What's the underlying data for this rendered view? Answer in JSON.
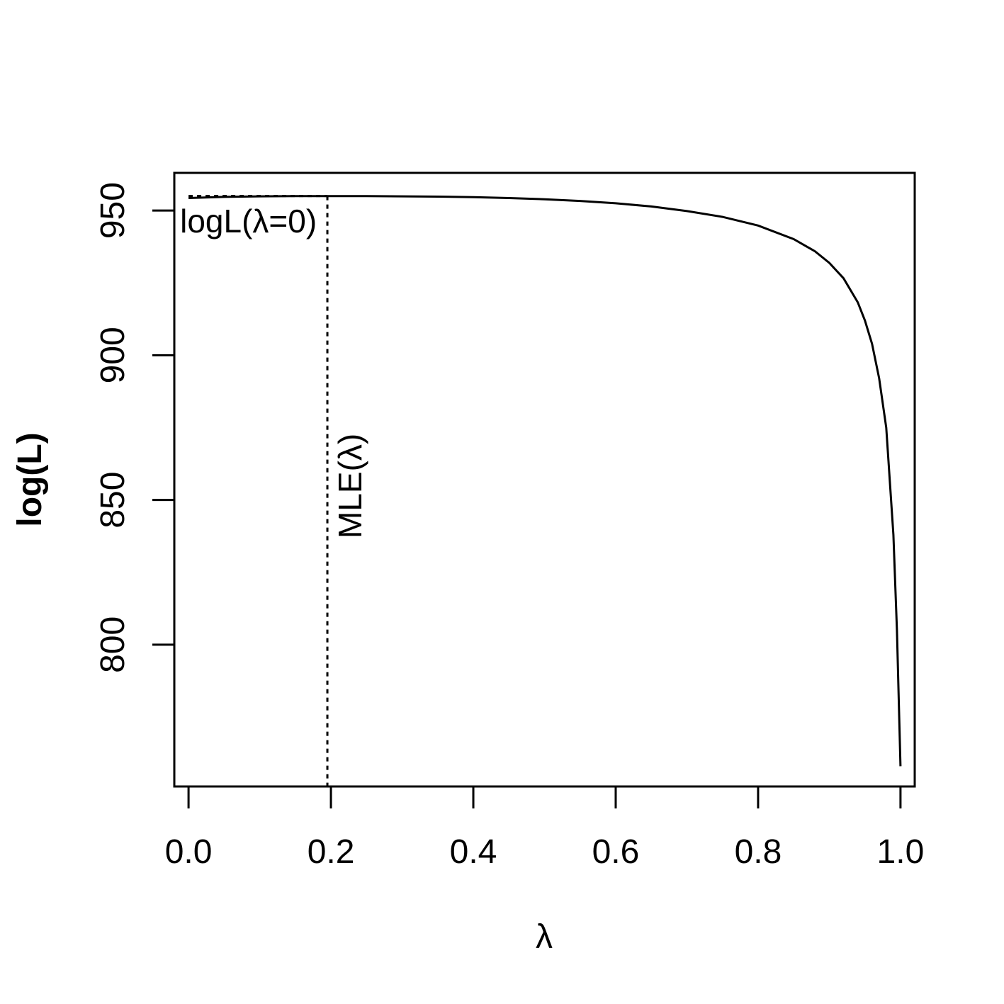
{
  "chart_data": {
    "type": "line",
    "xlabel": "λ",
    "ylabel": "log(L)",
    "xlim": [
      -0.02,
      1.02
    ],
    "ylim": [
      751,
      963
    ],
    "x_ticks": [
      0.0,
      0.2,
      0.4,
      0.6,
      0.8,
      1.0
    ],
    "x_tick_labels": [
      "0.0",
      "0.2",
      "0.4",
      "0.6",
      "0.8",
      "1.0"
    ],
    "y_ticks": [
      800,
      850,
      900,
      950
    ],
    "y_tick_labels": [
      "800",
      "850",
      "900",
      "950"
    ],
    "grid": false,
    "legend": "none",
    "series": [
      {
        "x": [
          0.0,
          0.05,
          0.1,
          0.15,
          0.2,
          0.25,
          0.3,
          0.35,
          0.4,
          0.45,
          0.5,
          0.55,
          0.6,
          0.65,
          0.7,
          0.75,
          0.8,
          0.85,
          0.88,
          0.9,
          0.92,
          0.94,
          0.95,
          0.96,
          0.97,
          0.98,
          0.99,
          0.995,
          1.0
        ],
        "y": [
          954.3,
          954.7,
          954.9,
          955.0,
          955.0,
          955.0,
          954.9,
          954.8,
          954.6,
          954.3,
          953.9,
          953.3,
          952.5,
          951.4,
          949.8,
          947.8,
          944.8,
          940.1,
          935.9,
          931.9,
          926.6,
          918.3,
          912.0,
          904.0,
          892.0,
          875.0,
          838.0,
          805.0,
          758.0
        ]
      }
    ],
    "mle": {
      "x": 0.195,
      "y": 955.0
    },
    "annotations": {
      "loglik_at_zero": "logL(λ=0)",
      "mle_label": "MLE(λ)"
    }
  }
}
